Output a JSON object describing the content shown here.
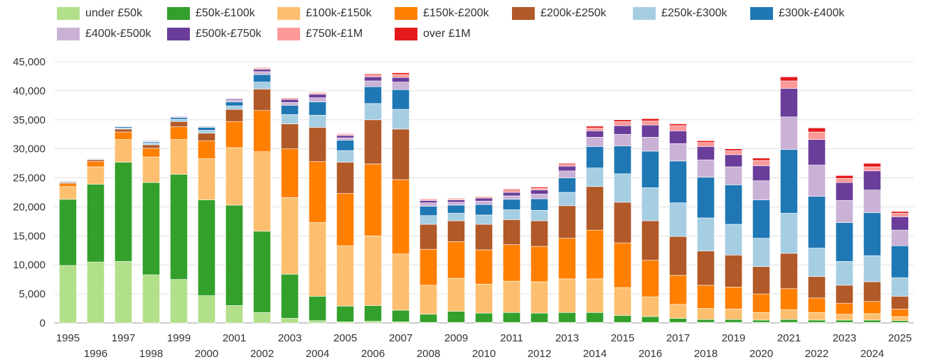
{
  "chart_data": {
    "type": "bar",
    "stacked": true,
    "title": "",
    "xlabel": "",
    "ylabel": "",
    "ylim": [
      0,
      45000
    ],
    "yticks": [
      "0",
      "5,000",
      "10,000",
      "15,000",
      "20,000",
      "25,000",
      "30,000",
      "35,000",
      "40,000",
      "45,000"
    ],
    "ytick_values": [
      0,
      5000,
      10000,
      15000,
      20000,
      25000,
      30000,
      35000,
      40000,
      45000
    ],
    "grid": true,
    "legend_position": "top-left",
    "categories": [
      "1995",
      "1996",
      "1997",
      "1998",
      "1999",
      "2000",
      "2001",
      "2002",
      "2003",
      "2004",
      "2005",
      "2006",
      "2007",
      "2008",
      "2009",
      "2010",
      "2011",
      "2012",
      "2013",
      "2014",
      "2015",
      "2016",
      "2017",
      "2018",
      "2019",
      "2020",
      "2021",
      "2022",
      "2023",
      "2024",
      "2025"
    ],
    "series": [
      {
        "name": "under £50k",
        "color": "#b2df8a",
        "values": [
          9900,
          10500,
          10600,
          8300,
          7500,
          4700,
          3000,
          1800,
          800,
          400,
          200,
          300,
          200,
          100,
          100,
          100,
          100,
          100,
          100,
          100,
          100,
          100,
          100,
          100,
          100,
          100,
          100,
          100,
          100,
          100,
          100
        ]
      },
      {
        "name": "£50k-£100k",
        "color": "#33a02c",
        "values": [
          11400,
          13400,
          17100,
          15900,
          18100,
          16500,
          17300,
          14000,
          7600,
          4200,
          2700,
          2700,
          2000,
          1400,
          1900,
          1600,
          1700,
          1600,
          1700,
          1700,
          1200,
          1000,
          700,
          500,
          500,
          400,
          500,
          400,
          400,
          400,
          300
        ]
      },
      {
        "name": "£100k-£150k",
        "color": "#fdbf6f",
        "values": [
          2200,
          3000,
          3900,
          4400,
          6000,
          7100,
          9900,
          13700,
          13200,
          12700,
          10400,
          12000,
          9700,
          5000,
          5700,
          5000,
          5400,
          5400,
          5800,
          5800,
          4800,
          3400,
          2400,
          1900,
          1800,
          1300,
          1700,
          1300,
          1000,
          1100,
          700
        ]
      },
      {
        "name": "£150k-£200k",
        "color": "#ff7f00",
        "values": [
          500,
          900,
          1300,
          1500,
          2200,
          3100,
          4500,
          7100,
          8400,
          10500,
          9000,
          12400,
          12800,
          6200,
          6300,
          5900,
          6300,
          6100,
          7000,
          8400,
          7700,
          6300,
          5000,
          4000,
          3800,
          3200,
          3600,
          2500,
          1900,
          2100,
          1300
        ]
      },
      {
        "name": "£200k-£250k",
        "color": "#b15928",
        "values": [
          200,
          300,
          500,
          600,
          900,
          1300,
          2100,
          3700,
          4300,
          5900,
          5400,
          7600,
          8700,
          4300,
          3600,
          4400,
          4300,
          4400,
          5600,
          7500,
          7000,
          6800,
          6700,
          5900,
          5500,
          4700,
          6100,
          3700,
          3100,
          3400,
          2200
        ]
      },
      {
        "name": "£250k-£300k",
        "color": "#a6cee3",
        "values": [
          100,
          100,
          200,
          300,
          400,
          500,
          600,
          1200,
          1600,
          2100,
          2000,
          2800,
          3400,
          1500,
          1300,
          1600,
          1700,
          1800,
          2300,
          3200,
          4900,
          5700,
          5800,
          5700,
          5300,
          4900,
          6900,
          4900,
          4100,
          4500,
          3200
        ]
      },
      {
        "name": "£300k-£400k",
        "color": "#1f78b4",
        "values": [
          100,
          100,
          200,
          200,
          300,
          500,
          700,
          1300,
          1600,
          2300,
          1800,
          2900,
          3400,
          1600,
          1400,
          1800,
          1800,
          2000,
          2500,
          3700,
          4800,
          6300,
          7200,
          7000,
          6800,
          6600,
          11000,
          8900,
          6700,
          7400,
          5500
        ]
      },
      {
        "name": "£400k-£500k",
        "color": "#cab2d6",
        "values": [
          0,
          0,
          100,
          100,
          100,
          100,
          300,
          500,
          500,
          700,
          400,
          1000,
          1300,
          600,
          500,
          600,
          600,
          800,
          1200,
          1600,
          2000,
          2400,
          3000,
          3000,
          3100,
          3300,
          5600,
          5400,
          3800,
          3900,
          2700
        ]
      },
      {
        "name": "£500k-£750k",
        "color": "#6a3d9a",
        "values": [
          0,
          0,
          0,
          100,
          100,
          100,
          200,
          400,
          500,
          600,
          400,
          700,
          800,
          400,
          400,
          500,
          600,
          700,
          800,
          1100,
          1500,
          2100,
          2200,
          2300,
          2100,
          2600,
          4900,
          4400,
          3100,
          3300,
          2300
        ]
      },
      {
        "name": "£750k-£1M",
        "color": "#fb9a99",
        "values": [
          0,
          0,
          0,
          0,
          0,
          0,
          100,
          200,
          200,
          200,
          200,
          300,
          500,
          200,
          200,
          200,
          300,
          300,
          300,
          500,
          700,
          700,
          900,
          700,
          700,
          900,
          1300,
          1300,
          700,
          700,
          600
        ]
      },
      {
        "name": "over £1M",
        "color": "#e31a1c",
        "values": [
          0,
          0,
          0,
          0,
          0,
          0,
          0,
          100,
          100,
          100,
          100,
          200,
          300,
          100,
          100,
          100,
          200,
          200,
          200,
          300,
          300,
          400,
          300,
          300,
          300,
          400,
          700,
          700,
          500,
          600,
          300
        ]
      }
    ]
  }
}
